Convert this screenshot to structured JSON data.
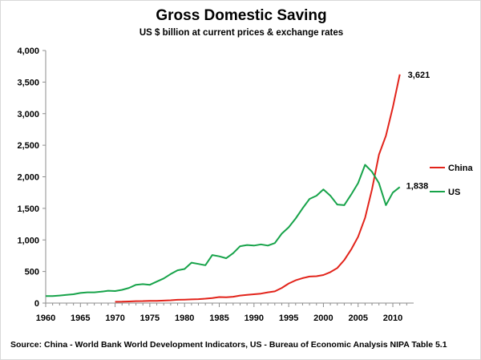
{
  "chart_data": {
    "type": "line",
    "title": "Gross Domestic Saving",
    "subtitle": "US $ billion at current prices & exchange rates",
    "source": "Source: China - World Bank World Development Indicators, US - Bureau of Economic Analysis NIPA Table 5.1",
    "xlabel": "",
    "ylabel": "",
    "xlim": [
      1960,
      2013
    ],
    "ylim": [
      0,
      4000
    ],
    "x_ticks": [
      "1960",
      "1965",
      "1970",
      "1975",
      "1980",
      "1985",
      "1990",
      "1995",
      "2000",
      "2005",
      "2010"
    ],
    "y_ticks": [
      "0",
      "500",
      "1,000",
      "1,500",
      "2,000",
      "2,500",
      "3,000",
      "3,500",
      "4,000"
    ],
    "grid": false,
    "legend_position": "right",
    "series": [
      {
        "name": "China",
        "color": "#e2231a",
        "end_label": "3,621",
        "x": [
          1970,
          1971,
          1972,
          1973,
          1974,
          1975,
          1976,
          1977,
          1978,
          1979,
          1980,
          1981,
          1982,
          1983,
          1984,
          1985,
          1986,
          1987,
          1988,
          1989,
          1990,
          1991,
          1992,
          1993,
          1994,
          1995,
          1996,
          1997,
          1998,
          1999,
          2000,
          2001,
          2002,
          2003,
          2004,
          2005,
          2006,
          2007,
          2008,
          2009,
          2010,
          2011
        ],
        "values": [
          20,
          22,
          25,
          30,
          32,
          35,
          34,
          40,
          45,
          52,
          55,
          58,
          62,
          70,
          80,
          95,
          92,
          100,
          120,
          130,
          140,
          150,
          170,
          185,
          240,
          310,
          360,
          395,
          420,
          425,
          445,
          490,
          555,
          680,
          850,
          1050,
          1350,
          1800,
          2350,
          2650,
          3100,
          3621
        ]
      },
      {
        "name": "US",
        "color": "#17a34a",
        "end_label": "1,838",
        "x": [
          1960,
          1961,
          1962,
          1963,
          1964,
          1965,
          1966,
          1967,
          1968,
          1969,
          1970,
          1971,
          1972,
          1973,
          1974,
          1975,
          1976,
          1977,
          1978,
          1979,
          1980,
          1981,
          1982,
          1983,
          1984,
          1985,
          1986,
          1987,
          1988,
          1989,
          1990,
          1991,
          1992,
          1993,
          1994,
          1995,
          1996,
          1997,
          1998,
          1999,
          2000,
          2001,
          2002,
          2003,
          2004,
          2005,
          2006,
          2007,
          2008,
          2009,
          2010,
          2011
        ],
        "values": [
          110,
          110,
          120,
          130,
          140,
          160,
          170,
          170,
          180,
          195,
          190,
          210,
          240,
          290,
          300,
          290,
          340,
          390,
          460,
          520,
          540,
          640,
          620,
          600,
          760,
          740,
          710,
          790,
          900,
          920,
          910,
          930,
          910,
          950,
          1100,
          1200,
          1340,
          1500,
          1650,
          1700,
          1800,
          1700,
          1560,
          1550,
          1720,
          1900,
          2190,
          2080,
          1900,
          1550,
          1750,
          1838
        ]
      }
    ]
  }
}
